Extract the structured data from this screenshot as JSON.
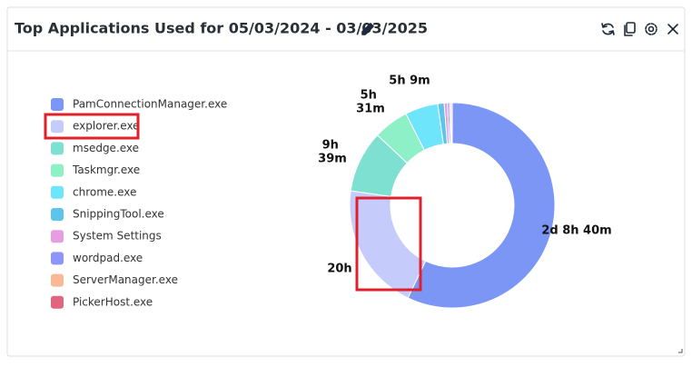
{
  "chart_data": {
    "type": "pie",
    "title": "Top Applications Used for 05/03/2024 - 03/03/2025",
    "categories": [
      "PamConnectionManager.exe",
      "explorer.exe",
      "msedge.exe",
      "Taskmgr.exe",
      "chrome.exe",
      "SnippingTool.exe",
      "System Settings",
      "wordpad.exe",
      "ServerManager.exe",
      "PickerHost.exe"
    ],
    "values": [
      3400,
      1200,
      579,
      331,
      309,
      60,
      30,
      20,
      15,
      10
    ],
    "value_labels": [
      "2d 8h 40m",
      "20h",
      "9h 39m",
      "5h 31m",
      "5h 9m",
      null,
      null,
      null,
      null,
      null
    ],
    "colors": [
      "#7b96f5",
      "#c5cbfb",
      "#7de0d0",
      "#8ef0c7",
      "#6ee5fb",
      "#5ec4ea",
      "#e59ee0",
      "#8f94f7",
      "#f9b995",
      "#e0657e"
    ],
    "donut": true
  }
}
